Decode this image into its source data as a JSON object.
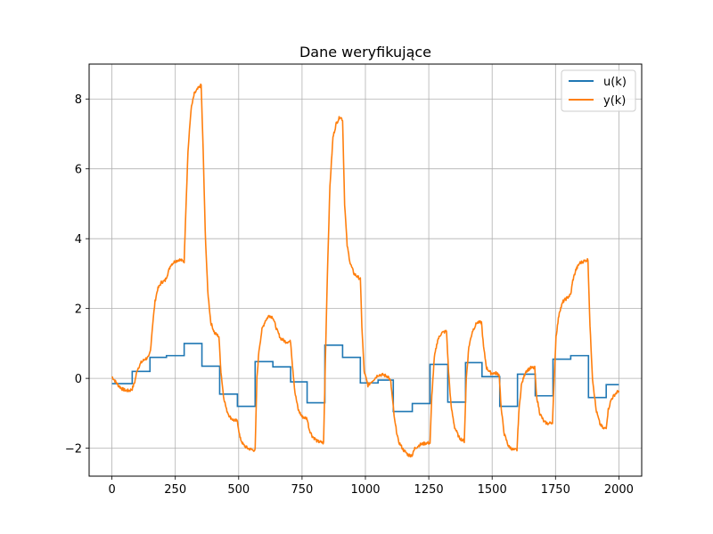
{
  "chart_data": {
    "type": "line",
    "title": "Dane weryfikujące",
    "xlabel": "",
    "ylabel": "",
    "xlim": [
      -90,
      2090
    ],
    "ylim": [
      -2.8,
      9.0
    ],
    "xticks": [
      0,
      250,
      500,
      750,
      1000,
      1250,
      1500,
      1750,
      2000
    ],
    "xtick_labels": [
      "0",
      "250",
      "500",
      "750",
      "1000",
      "1250",
      "1500",
      "1750",
      "2000"
    ],
    "yticks": [
      -2,
      0,
      2,
      4,
      6,
      8
    ],
    "ytick_labels": [
      "−2",
      "0",
      "2",
      "4",
      "6",
      "8"
    ],
    "grid": true,
    "legend": {
      "placement": "top-right",
      "entries": [
        "u(k)",
        "y(k)"
      ]
    },
    "series": [
      {
        "name": "u(k)",
        "color": "#1f77b4",
        "step": true,
        "segments": [
          {
            "start": 0,
            "value": -0.15
          },
          {
            "start": 80,
            "value": 0.2
          },
          {
            "start": 150,
            "value": 0.6
          },
          {
            "start": 215,
            "value": 0.65
          },
          {
            "start": 285,
            "value": 1.0
          },
          {
            "start": 355,
            "value": 0.35
          },
          {
            "start": 425,
            "value": -0.45
          },
          {
            "start": 495,
            "value": -0.8
          },
          {
            "start": 565,
            "value": 0.48
          },
          {
            "start": 635,
            "value": 0.33
          },
          {
            "start": 705,
            "value": -0.1
          },
          {
            "start": 770,
            "value": -0.7
          },
          {
            "start": 840,
            "value": 0.95
          },
          {
            "start": 910,
            "value": 0.6
          },
          {
            "start": 980,
            "value": -0.13
          },
          {
            "start": 1050,
            "value": -0.05
          },
          {
            "start": 1110,
            "value": -0.95
          },
          {
            "start": 1185,
            "value": -0.72
          },
          {
            "start": 1255,
            "value": 0.4
          },
          {
            "start": 1325,
            "value": -0.68
          },
          {
            "start": 1395,
            "value": 0.45
          },
          {
            "start": 1460,
            "value": 0.05
          },
          {
            "start": 1530,
            "value": -0.8
          },
          {
            "start": 1600,
            "value": 0.12
          },
          {
            "start": 1670,
            "value": -0.5
          },
          {
            "start": 1740,
            "value": 0.55
          },
          {
            "start": 1810,
            "value": 0.65
          },
          {
            "start": 1880,
            "value": -0.55
          },
          {
            "start": 1950,
            "value": -0.18
          }
        ],
        "end": 2000
      },
      {
        "name": "y(k)",
        "color": "#ff7f0e",
        "values_xy": [
          [
            0,
            0.05
          ],
          [
            10,
            -0.05
          ],
          [
            25,
            -0.2
          ],
          [
            40,
            -0.3
          ],
          [
            55,
            -0.35
          ],
          [
            70,
            -0.35
          ],
          [
            80,
            -0.3
          ],
          [
            90,
            -0.1
          ],
          [
            100,
            0.25
          ],
          [
            115,
            0.45
          ],
          [
            130,
            0.55
          ],
          [
            145,
            0.6
          ],
          [
            152,
            0.8
          ],
          [
            160,
            1.5
          ],
          [
            170,
            2.2
          ],
          [
            180,
            2.55
          ],
          [
            195,
            2.75
          ],
          [
            210,
            2.8
          ],
          [
            220,
            3.0
          ],
          [
            232,
            3.25
          ],
          [
            248,
            3.35
          ],
          [
            265,
            3.4
          ],
          [
            285,
            3.35
          ],
          [
            290,
            4.5
          ],
          [
            300,
            6.5
          ],
          [
            312,
            7.7
          ],
          [
            325,
            8.15
          ],
          [
            340,
            8.3
          ],
          [
            352,
            8.4
          ],
          [
            360,
            6.5
          ],
          [
            368,
            4.2
          ],
          [
            378,
            2.5
          ],
          [
            390,
            1.6
          ],
          [
            405,
            1.3
          ],
          [
            422,
            1.2
          ],
          [
            430,
            0.2
          ],
          [
            440,
            -0.5
          ],
          [
            452,
            -0.9
          ],
          [
            465,
            -1.1
          ],
          [
            480,
            -1.2
          ],
          [
            495,
            -1.22
          ],
          [
            505,
            -1.7
          ],
          [
            518,
            -1.9
          ],
          [
            535,
            -2.0
          ],
          [
            555,
            -2.05
          ],
          [
            565,
            -2.05
          ],
          [
            572,
            0.0
          ],
          [
            580,
            0.8
          ],
          [
            592,
            1.4
          ],
          [
            605,
            1.65
          ],
          [
            620,
            1.8
          ],
          [
            635,
            1.75
          ],
          [
            650,
            1.4
          ],
          [
            665,
            1.15
          ],
          [
            685,
            1.05
          ],
          [
            705,
            1.05
          ],
          [
            712,
            0.4
          ],
          [
            722,
            -0.4
          ],
          [
            735,
            -0.9
          ],
          [
            750,
            -1.1
          ],
          [
            770,
            -1.15
          ],
          [
            778,
            -1.45
          ],
          [
            790,
            -1.65
          ],
          [
            810,
            -1.8
          ],
          [
            835,
            -1.85
          ],
          [
            842,
            0.5
          ],
          [
            850,
            3.0
          ],
          [
            860,
            5.5
          ],
          [
            872,
            6.9
          ],
          [
            885,
            7.3
          ],
          [
            900,
            7.5
          ],
          [
            910,
            7.4
          ],
          [
            918,
            5.0
          ],
          [
            928,
            3.8
          ],
          [
            940,
            3.3
          ],
          [
            955,
            3.0
          ],
          [
            970,
            2.9
          ],
          [
            980,
            2.85
          ],
          [
            986,
            1.5
          ],
          [
            995,
            0.2
          ],
          [
            1010,
            -0.2
          ],
          [
            1030,
            -0.05
          ],
          [
            1050,
            0.1
          ],
          [
            1070,
            0.1
          ],
          [
            1090,
            0.05
          ],
          [
            1100,
            -0.1
          ],
          [
            1115,
            -1.2
          ],
          [
            1130,
            -1.8
          ],
          [
            1150,
            -2.05
          ],
          [
            1170,
            -2.2
          ],
          [
            1185,
            -2.2
          ],
          [
            1195,
            -2.0
          ],
          [
            1215,
            -1.9
          ],
          [
            1240,
            -1.85
          ],
          [
            1255,
            -1.85
          ],
          [
            1262,
            -0.5
          ],
          [
            1272,
            0.6
          ],
          [
            1285,
            1.1
          ],
          [
            1300,
            1.3
          ],
          [
            1320,
            1.35
          ],
          [
            1328,
            0.2
          ],
          [
            1338,
            -0.8
          ],
          [
            1352,
            -1.4
          ],
          [
            1370,
            -1.7
          ],
          [
            1390,
            -1.8
          ],
          [
            1398,
            0.0
          ],
          [
            1408,
            0.9
          ],
          [
            1422,
            1.35
          ],
          [
            1440,
            1.6
          ],
          [
            1458,
            1.6
          ],
          [
            1466,
            0.9
          ],
          [
            1478,
            0.3
          ],
          [
            1495,
            0.15
          ],
          [
            1515,
            0.15
          ],
          [
            1528,
            0.1
          ],
          [
            1536,
            -0.9
          ],
          [
            1548,
            -1.6
          ],
          [
            1565,
            -1.95
          ],
          [
            1585,
            -2.05
          ],
          [
            1598,
            -2.05
          ],
          [
            1605,
            -1.0
          ],
          [
            1615,
            -0.2
          ],
          [
            1632,
            0.2
          ],
          [
            1652,
            0.3
          ],
          [
            1668,
            0.3
          ],
          [
            1675,
            -0.5
          ],
          [
            1688,
            -1.0
          ],
          [
            1705,
            -1.25
          ],
          [
            1722,
            -1.3
          ],
          [
            1738,
            -1.25
          ],
          [
            1745,
            0.0
          ],
          [
            1752,
            1.2
          ],
          [
            1765,
            1.9
          ],
          [
            1780,
            2.2
          ],
          [
            1795,
            2.3
          ],
          [
            1810,
            2.4
          ],
          [
            1818,
            2.8
          ],
          [
            1830,
            3.1
          ],
          [
            1845,
            3.3
          ],
          [
            1860,
            3.35
          ],
          [
            1878,
            3.4
          ],
          [
            1886,
            1.5
          ],
          [
            1896,
            0.0
          ],
          [
            1910,
            -0.9
          ],
          [
            1925,
            -1.3
          ],
          [
            1940,
            -1.45
          ],
          [
            1950,
            -1.4
          ],
          [
            1958,
            -0.9
          ],
          [
            1970,
            -0.6
          ],
          [
            1985,
            -0.45
          ],
          [
            2000,
            -0.35
          ]
        ]
      }
    ]
  }
}
